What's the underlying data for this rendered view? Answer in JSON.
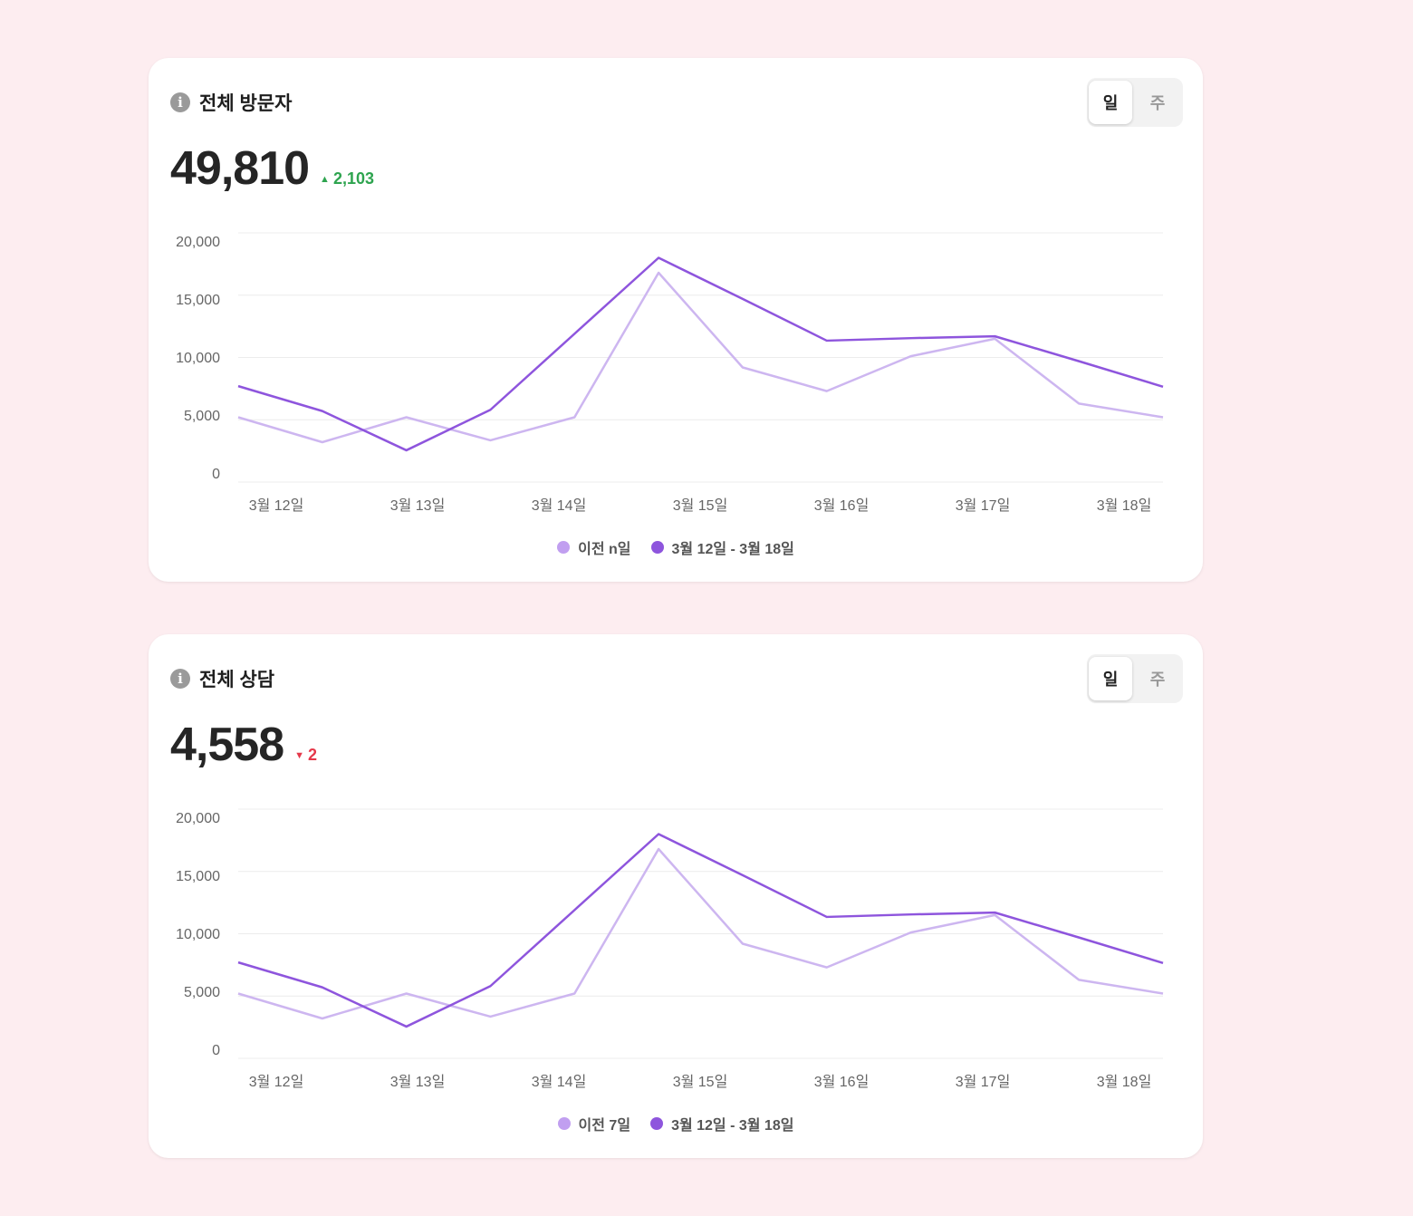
{
  "colors": {
    "previous": "#cdb6f0",
    "current": "#8e55dd",
    "grid": "#ececec",
    "axis_text": "#666666"
  },
  "cards": [
    {
      "title": "전체 방문자",
      "value": "49,810",
      "delta": "2,103",
      "delta_dir": "up",
      "toggle": [
        "일",
        "주"
      ],
      "legend": [
        "이전 n일",
        "3월 12일 - 3월 18일"
      ]
    },
    {
      "title": "전체 상담",
      "value": "4,558",
      "delta": "2",
      "delta_dir": "down",
      "toggle": [
        "일",
        "주"
      ],
      "legend": [
        "이전 7일",
        "3월 12일 - 3월 18일"
      ]
    }
  ],
  "chart_data": [
    {
      "type": "line",
      "ylim": [
        0,
        20000
      ],
      "yticks": [
        "20,000",
        "15,000",
        "10,000",
        "5,000",
        "0"
      ],
      "xticks": [
        "3월 12일",
        "3월 13일",
        "3월 14일",
        "3월 15일",
        "3월 16일",
        "3월 17일",
        "3월 18일"
      ],
      "series": [
        {
          "name": "이전 n일",
          "values": [
            5200,
            3200,
            5200,
            3350,
            5200,
            16800,
            9200,
            7300,
            10100,
            11500,
            6300,
            5200
          ]
        },
        {
          "name": "3월 12일 - 3월 18일",
          "values": [
            7700,
            5700,
            2550,
            5800,
            11900,
            18000,
            14700,
            11350,
            11550,
            11700,
            9700,
            7650
          ]
        }
      ]
    },
    {
      "type": "line",
      "ylim": [
        0,
        20000
      ],
      "yticks": [
        "20,000",
        "15,000",
        "10,000",
        "5,000",
        "0"
      ],
      "xticks": [
        "3월 12일",
        "3월 13일",
        "3월 14일",
        "3월 15일",
        "3월 16일",
        "3월 17일",
        "3월 18일"
      ],
      "series": [
        {
          "name": "이전 7일",
          "values": [
            5200,
            3200,
            5200,
            3350,
            5200,
            16800,
            9200,
            7300,
            10100,
            11500,
            6300,
            5200
          ]
        },
        {
          "name": "3월 12일 - 3월 18일",
          "values": [
            7700,
            5700,
            2550,
            5800,
            11900,
            18000,
            14700,
            11350,
            11550,
            11700,
            9700,
            7650
          ]
        }
      ]
    }
  ]
}
